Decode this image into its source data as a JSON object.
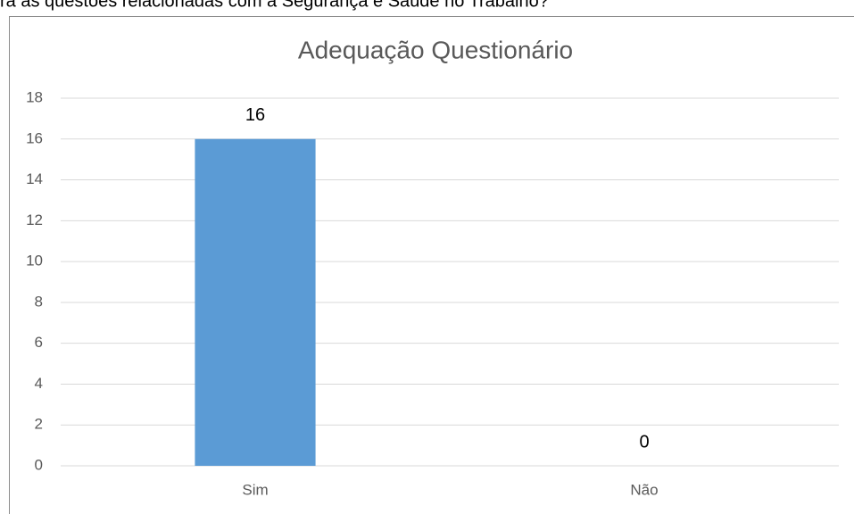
{
  "caption": "ra as questões relacionadas com a Segurança e Saúde no Trabalho?",
  "chart_data": {
    "type": "bar",
    "title": "Adequação Questionário",
    "categories": [
      "Sim",
      "Não"
    ],
    "values": [
      16,
      0
    ],
    "color": "#5b9bd5",
    "ylim": [
      0,
      18
    ],
    "yticks": [
      0,
      2,
      4,
      6,
      8,
      10,
      12,
      14,
      16,
      18
    ],
    "grid": true
  }
}
